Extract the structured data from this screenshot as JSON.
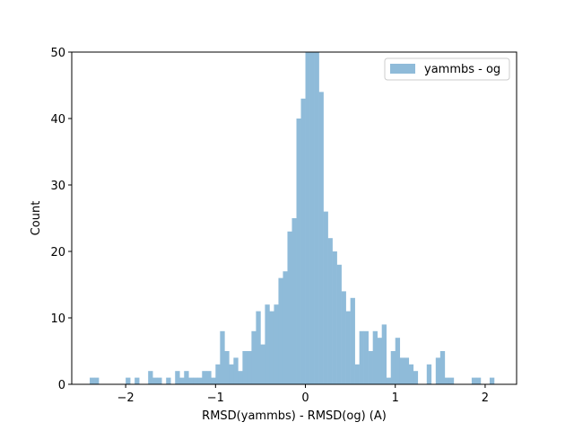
{
  "chart_data": {
    "type": "bar",
    "histogram": true,
    "xlabel": "RMSD(yammbs) - RMSD(og) (A)",
    "ylabel": "Count",
    "xlim": [
      -2.6,
      2.35
    ],
    "ylim": [
      0,
      50
    ],
    "xticks": [
      -2,
      -1,
      0,
      1,
      2
    ],
    "xtick_labels": [
      "−2",
      "−1",
      "0",
      "1",
      "2"
    ],
    "yticks": [
      0,
      10,
      20,
      30,
      40,
      50
    ],
    "ytick_labels": [
      "0",
      "10",
      "20",
      "30",
      "40",
      "50"
    ],
    "grid": false,
    "legend_position": "upper right",
    "series": [
      {
        "name": "yammbs - og",
        "color": "#8fbbd9",
        "bin_width": 0.05,
        "bin_left": [
          -2.4,
          -2.35,
          -2.0,
          -1.9,
          -1.75,
          -1.7,
          -1.65,
          -1.55,
          -1.45,
          -1.4,
          -1.35,
          -1.3,
          -1.25,
          -1.2,
          -1.15,
          -1.1,
          -1.05,
          -1.0,
          -0.95,
          -0.9,
          -0.85,
          -0.8,
          -0.75,
          -0.7,
          -0.65,
          -0.6,
          -0.55,
          -0.5,
          -0.45,
          -0.4,
          -0.35,
          -0.3,
          -0.25,
          -0.2,
          -0.15,
          -0.1,
          -0.05,
          0.0,
          0.05,
          0.1,
          0.15,
          0.2,
          0.25,
          0.3,
          0.35,
          0.4,
          0.45,
          0.5,
          0.55,
          0.6,
          0.65,
          0.7,
          0.75,
          0.8,
          0.85,
          0.9,
          0.95,
          1.0,
          1.05,
          1.1,
          1.15,
          1.2,
          1.35,
          1.45,
          1.5,
          1.55,
          1.6,
          1.85,
          1.9,
          2.05
        ],
        "counts": [
          1,
          1,
          1,
          1,
          2,
          1,
          1,
          1,
          2,
          1,
          2,
          1,
          1,
          1,
          2,
          2,
          1,
          3,
          8,
          5,
          3,
          4,
          2,
          5,
          5,
          8,
          11,
          6,
          12,
          11,
          12,
          16,
          17,
          23,
          25,
          40,
          43,
          55,
          52,
          50,
          44,
          26,
          22,
          20,
          18,
          14,
          11,
          13,
          3,
          8,
          8,
          5,
          8,
          7,
          9,
          1,
          5,
          7,
          4,
          4,
          3,
          2,
          3,
          4,
          5,
          1,
          1,
          1,
          1,
          1
        ]
      }
    ]
  }
}
